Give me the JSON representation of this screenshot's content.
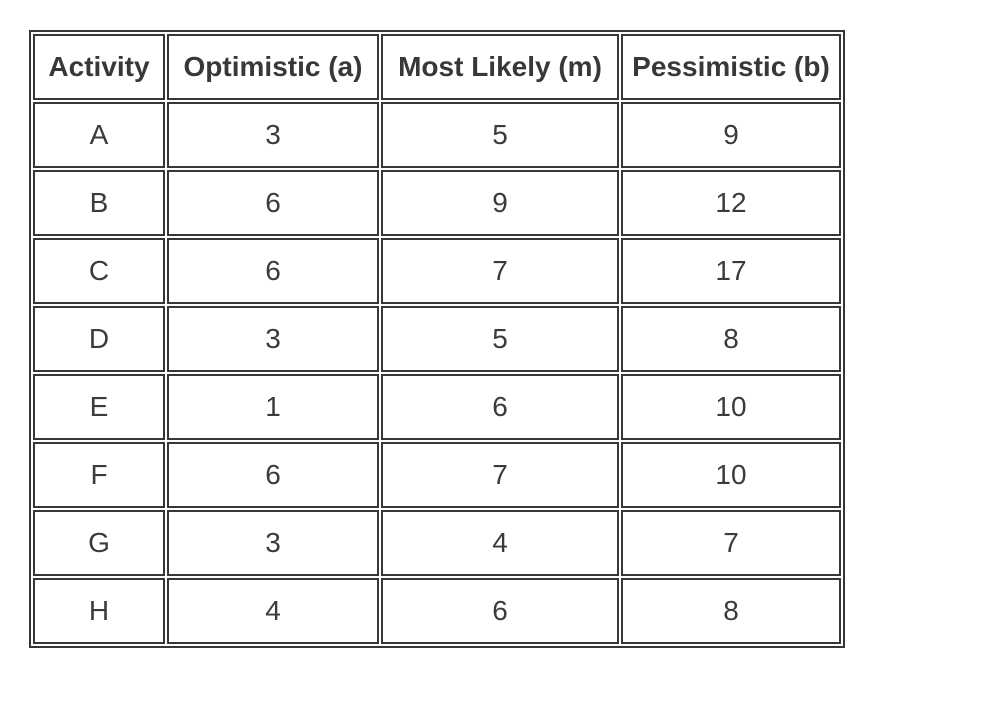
{
  "table": {
    "headers": [
      "Activity",
      "Optimistic (a)",
      "Most Likely (m)",
      "Pessimistic (b)"
    ],
    "rows": [
      [
        "A",
        "3",
        "5",
        "9"
      ],
      [
        "B",
        "6",
        "9",
        "12"
      ],
      [
        "C",
        "6",
        "7",
        "17"
      ],
      [
        "D",
        "3",
        "5",
        "8"
      ],
      [
        "E",
        "1",
        "6",
        "10"
      ],
      [
        "F",
        "6",
        "7",
        "10"
      ],
      [
        "G",
        "3",
        "4",
        "7"
      ],
      [
        "H",
        "4",
        "6",
        "8"
      ]
    ]
  },
  "chart_data": {
    "type": "table",
    "title": "",
    "columns": [
      "Activity",
      "Optimistic (a)",
      "Most Likely (m)",
      "Pessimistic (b)"
    ],
    "rows": [
      {
        "activity": "A",
        "optimistic": 3,
        "most_likely": 5,
        "pessimistic": 9
      },
      {
        "activity": "B",
        "optimistic": 6,
        "most_likely": 9,
        "pessimistic": 12
      },
      {
        "activity": "C",
        "optimistic": 6,
        "most_likely": 7,
        "pessimistic": 17
      },
      {
        "activity": "D",
        "optimistic": 3,
        "most_likely": 5,
        "pessimistic": 8
      },
      {
        "activity": "E",
        "optimistic": 1,
        "most_likely": 6,
        "pessimistic": 10
      },
      {
        "activity": "F",
        "optimistic": 6,
        "most_likely": 7,
        "pessimistic": 10
      },
      {
        "activity": "G",
        "optimistic": 3,
        "most_likely": 4,
        "pessimistic": 7
      },
      {
        "activity": "H",
        "optimistic": 4,
        "most_likely": 6,
        "pessimistic": 8
      }
    ]
  },
  "colors": {
    "border": "#373737",
    "text": "#3b3b3b",
    "background": "#ffffff"
  }
}
